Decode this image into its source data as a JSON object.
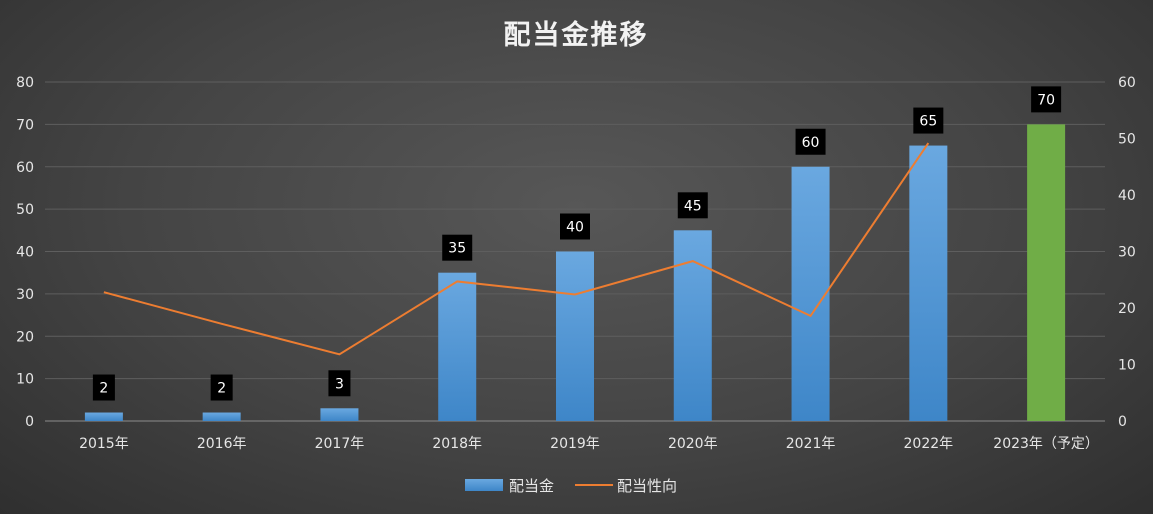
{
  "chart_data": {
    "type": "bar",
    "title": "配当金推移",
    "categories": [
      "2015年",
      "2016年",
      "2017年",
      "2018年",
      "2019年",
      "2020年",
      "2021年",
      "2022年",
      "2023年（予定）"
    ],
    "series": [
      {
        "name": "配当金",
        "type": "bar",
        "axis": "left",
        "values": [
          2,
          2,
          3,
          35,
          40,
          45,
          60,
          65,
          70
        ],
        "color": "#5b9bd5",
        "highlight": {
          "index": 8,
          "color": "#70ad47"
        },
        "data_labels": [
          "2",
          "2",
          "3",
          "35",
          "40",
          "45",
          "60",
          "65",
          "70"
        ]
      },
      {
        "name": "配当性向",
        "type": "line",
        "axis": "right",
        "values": [
          22.8,
          17.2,
          11.8,
          24.7,
          22.4,
          28.3,
          18.6,
          49.2,
          null
        ],
        "color": "#ed7d31"
      }
    ],
    "y_left": {
      "ylim": [
        0,
        80
      ],
      "ticks": [
        0,
        10,
        20,
        30,
        40,
        50,
        60,
        70,
        80
      ]
    },
    "y_right": {
      "ylim": [
        0,
        60
      ],
      "ticks": [
        0,
        10,
        20,
        30,
        40,
        50,
        60
      ]
    },
    "grid": true,
    "legend_position": "bottom"
  }
}
